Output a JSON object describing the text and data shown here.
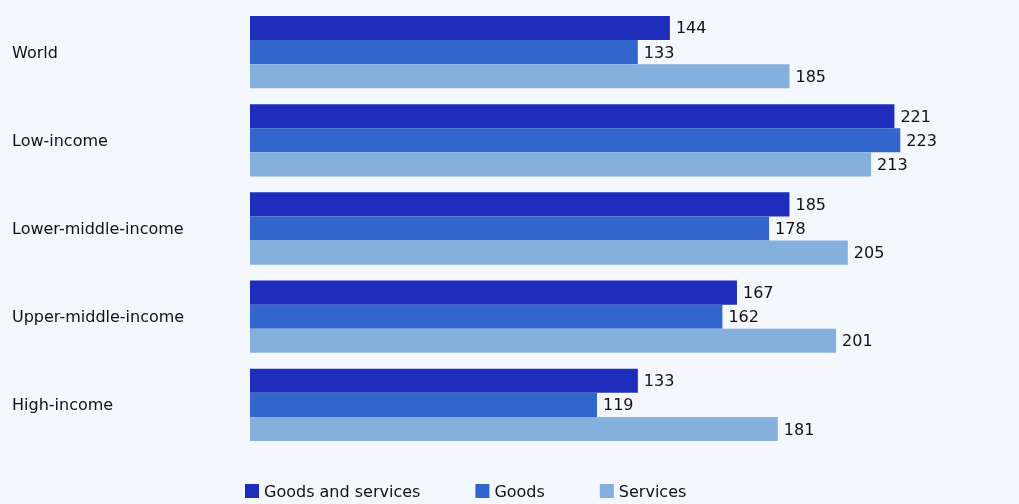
{
  "chart_data": {
    "type": "bar",
    "orientation": "horizontal",
    "categories": [
      "World",
      "Low-income",
      "Lower-middle-income",
      "Upper-middle-income",
      "High-income"
    ],
    "series": [
      {
        "name": "Goods and services",
        "color": "#1f2dbd",
        "values": [
          144,
          221,
          185,
          167,
          133
        ]
      },
      {
        "name": "Goods",
        "color": "#3366cc",
        "values": [
          133,
          223,
          178,
          162,
          119
        ]
      },
      {
        "name": "Services",
        "color": "#85afdd",
        "values": [
          185,
          213,
          205,
          201,
          181
        ]
      }
    ],
    "data_labels": true,
    "legend": "bottom"
  }
}
